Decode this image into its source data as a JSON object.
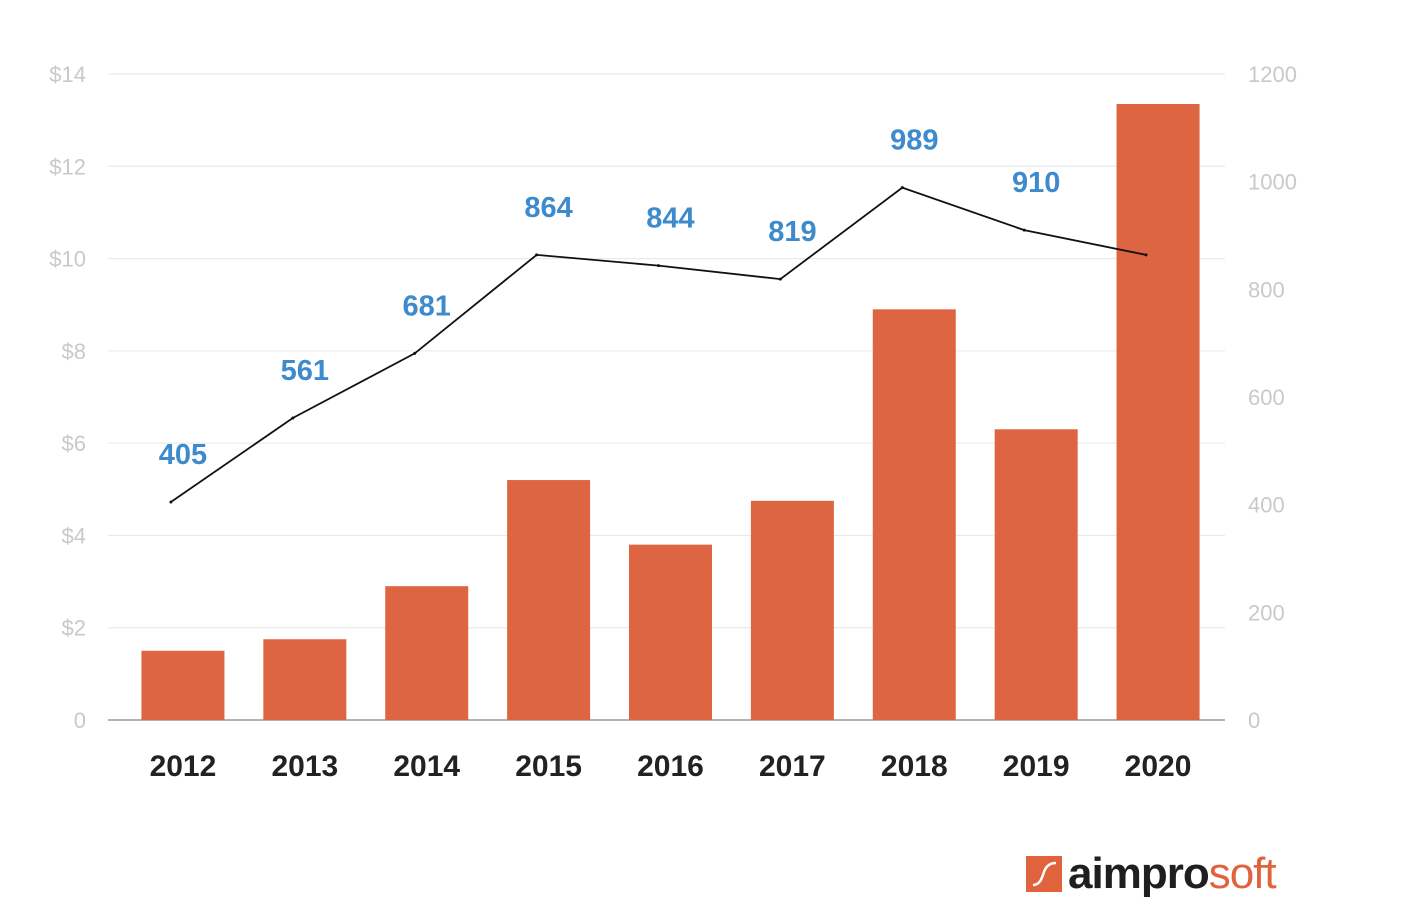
{
  "chart_data": {
    "type": "bar",
    "title": "",
    "xlabel": "",
    "categories": [
      "2012",
      "2013",
      "2014",
      "2015",
      "2016",
      "2017",
      "2018",
      "2019",
      "2020"
    ],
    "series": [
      {
        "type": "bar",
        "axis": "left",
        "color": "#dd6542",
        "values": [
          1.5,
          1.75,
          2.9,
          5.2,
          3.8,
          4.75,
          8.9,
          6.3,
          13.35
        ]
      },
      {
        "type": "line",
        "axis": "right",
        "color": "#111111",
        "values": [
          405,
          561,
          681,
          864,
          844,
          819,
          989,
          910,
          864
        ],
        "labels": [
          "405",
          "561",
          "681",
          "864",
          "844",
          "819",
          "989",
          "910",
          ""
        ],
        "label_color": "#3d8bcd"
      }
    ],
    "y_left": {
      "ylim": [
        0,
        14
      ],
      "ticks": [
        0,
        2,
        4,
        6,
        8,
        10,
        12,
        14
      ],
      "tick_labels": [
        "0",
        "$2",
        "$4",
        "$6",
        "$8",
        "$10",
        "$12",
        "$14"
      ]
    },
    "y_right": {
      "ylim": [
        0,
        1200
      ],
      "ticks": [
        0,
        200,
        400,
        600,
        800,
        1000,
        1200
      ],
      "tick_labels": [
        "0",
        "200",
        "400",
        "600",
        "800",
        "1000",
        "1200"
      ]
    },
    "grid": true,
    "legend": "none"
  },
  "logo": {
    "text_dark": "aimpro",
    "text_accent": "soft",
    "accent_color": "#e0633d"
  }
}
